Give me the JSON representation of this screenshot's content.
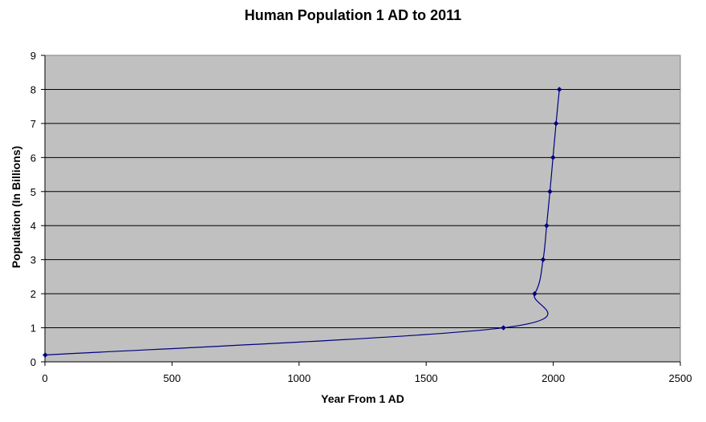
{
  "chart_data": {
    "type": "line",
    "title": "Human Population 1 AD to 2011",
    "xlabel": "Year From 1 AD",
    "ylabel": "Population (In Billions)",
    "xlim": [
      0,
      2500
    ],
    "ylim": [
      0,
      9
    ],
    "xticks": [
      0,
      500,
      1000,
      1500,
      2000,
      2500
    ],
    "yticks": [
      0,
      1,
      2,
      3,
      4,
      5,
      6,
      7,
      8,
      9
    ],
    "grid": "horizontal",
    "legend": "none",
    "smooth": true,
    "series": [
      {
        "x": [
          1,
          1804,
          1927,
          1960,
          1974,
          1987,
          1999,
          2011,
          2024
        ],
        "y": [
          0.2,
          1,
          2,
          3,
          4,
          5,
          6,
          7,
          8
        ],
        "color": "#000080"
      }
    ],
    "colors": {
      "plot_background": "#C0C0C0",
      "gridline": "#000000",
      "line": "#000080"
    }
  }
}
